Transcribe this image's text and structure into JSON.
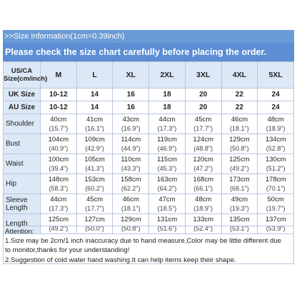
{
  "header": {
    "info": ">>Size Information(1cm=0.39inch)",
    "notice": "Please check the size chart carefully before placing the order."
  },
  "table": {
    "label_col": "US/CA Size(cm/inch)",
    "sizes": [
      "M",
      "L",
      "XL",
      "2XL",
      "3XL",
      "4XL",
      "5XL"
    ],
    "uk": {
      "label": "UK Size",
      "values": [
        "10-12",
        "14",
        "16",
        "18",
        "20",
        "22",
        "24"
      ]
    },
    "au": {
      "label": "AU Size",
      "values": [
        "10-12",
        "14",
        "16",
        "18",
        "20",
        "22",
        "24"
      ]
    },
    "measurements": [
      {
        "label": "Shoulder",
        "cm": [
          "40cm",
          "41cm",
          "43cm",
          "44cm",
          "45cm",
          "46cm",
          "48cm"
        ],
        "inch": [
          "(15.7\")",
          "(16.1\")",
          "(16.9\")",
          "(17.3\")",
          "(17.7\")",
          "(18.1\")",
          "(18.9\")"
        ]
      },
      {
        "label": "Bust",
        "cm": [
          "104cm",
          "109cm",
          "114cm",
          "119cm",
          "124cm",
          "129cm",
          "134cm"
        ],
        "inch": [
          "(40.9\")",
          "(42.9\")",
          "(44.9\")",
          "(46.9\")",
          "(48.8\")",
          "(50.8\")",
          "(52.8\")"
        ]
      },
      {
        "label": "Waist",
        "cm": [
          "100cm",
          "105cm",
          "110cm",
          "115cm",
          "120cm",
          "125cm",
          "130cm"
        ],
        "inch": [
          "(39.4\")",
          "(41.3\")",
          "(43.3\")",
          "(45.3\")",
          "(47.2\")",
          "(49.2\")",
          "(51.2\")"
        ]
      },
      {
        "label": "Hip",
        "cm": [
          "148cm",
          "153cm",
          "158cm",
          "163cm",
          "168cm",
          "173cm",
          "178cm"
        ],
        "inch": [
          "(58.3\")",
          "(60.2\")",
          "(62.2\")",
          "(64.2\")",
          "(66.1\")",
          "(68.1\")",
          "(70.1\")"
        ]
      },
      {
        "label": "Sleeve Length",
        "cm": [
          "44cm",
          "45cm",
          "46cm",
          "47cm",
          "48cm",
          "49cm",
          "50cm"
        ],
        "inch": [
          "(17.3\")",
          "(17.7\")",
          "(18.1\")",
          "(18.5\")",
          "(18.9\")",
          "(19.3\")",
          "(19.7\")"
        ]
      },
      {
        "label": "Length",
        "cm": [
          "125cm",
          "127cm",
          "129cm",
          "131cm",
          "133cm",
          "135cm",
          "137cm"
        ],
        "inch": [
          "(49.2\")",
          "(50.0\")",
          "(50.8\")",
          "(51.6\")",
          "(52.4\")",
          "(53.1\")",
          "(53.9\")"
        ]
      }
    ]
  },
  "notes": {
    "title": "Attention:",
    "line1": "1.Size may be 2cm/1 inch inaccuracy due to hand measure,Color may be little different due",
    "line2": "to monitor,thanks for your understanding!",
    "line3": "2.Suggestion of cold water hand washing.It can help items keep their shape."
  },
  "colors": {
    "header_blue": "#5b8ed3",
    "label_bg": "#dce8f6"
  }
}
